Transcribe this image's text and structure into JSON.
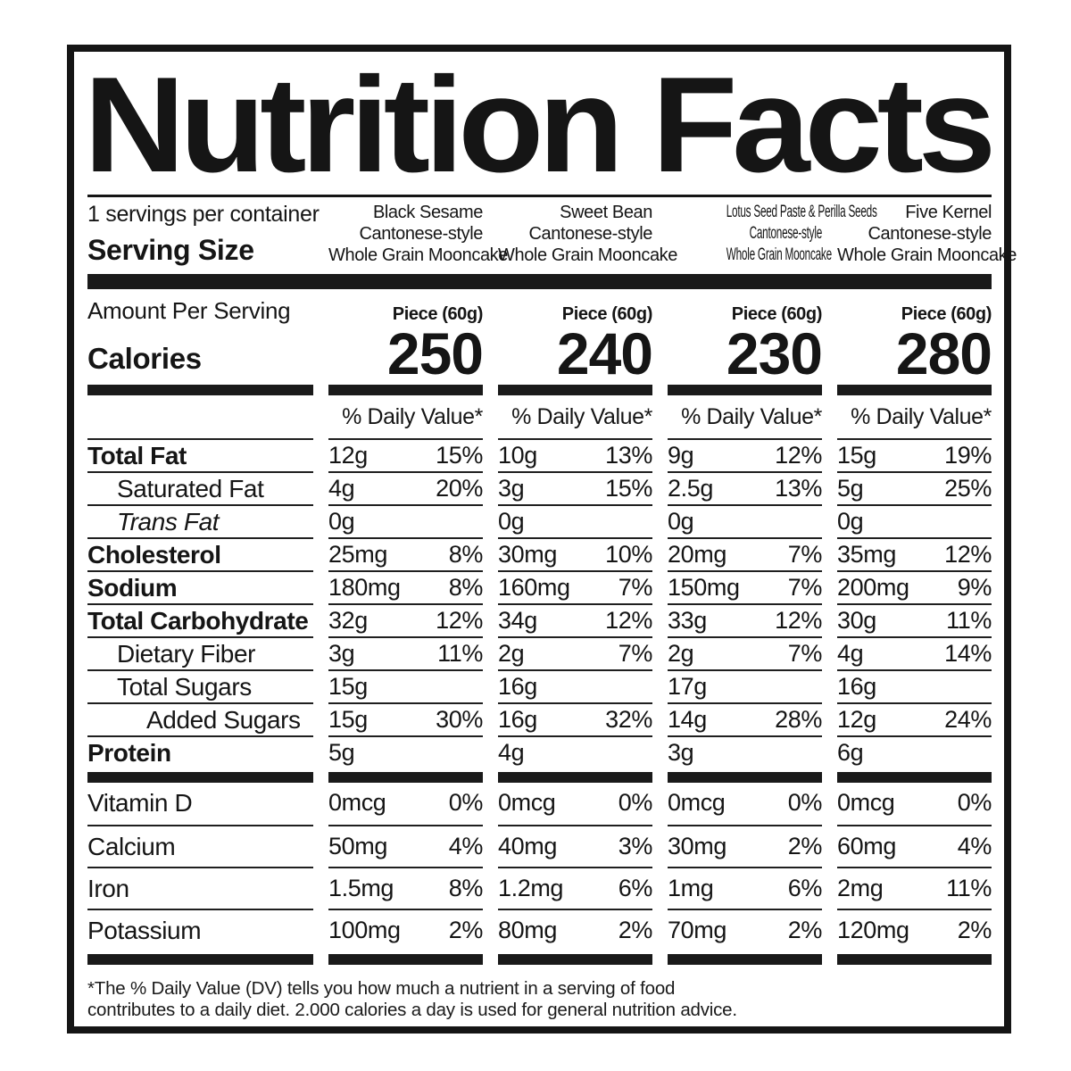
{
  "title": "Nutrition Facts",
  "servings_per_container": "1 servings per container",
  "serving_size_label": "Serving Size",
  "amount_per_serving_label": "Amount Per Serving",
  "calories_label": "Calories",
  "daily_value_header": "% Daily Value*",
  "products": [
    {
      "name_lines": [
        "Black Sesame",
        "Cantonese-style",
        "Whole Grain Mooncake"
      ],
      "condensed": false,
      "serving": "Piece (60g)",
      "calories": "250"
    },
    {
      "name_lines": [
        "Sweet Bean",
        "Cantonese-style",
        "Whole Grain Mooncake"
      ],
      "condensed": false,
      "serving": "Piece (60g)",
      "calories": "240"
    },
    {
      "name_lines": [
        "Lotus Seed Paste & Perilla Seeds",
        "Cantonese-style",
        "Whole Grain Mooncake"
      ],
      "condensed": true,
      "serving": "Piece (60g)",
      "calories": "230"
    },
    {
      "name_lines": [
        "Five Kernel",
        "Cantonese-style",
        "Whole Grain Mooncake"
      ],
      "condensed": false,
      "serving": "Piece (60g)",
      "calories": "280"
    }
  ],
  "nutrients": [
    {
      "label": "Total Fat",
      "style": "bold",
      "indent": 0,
      "values": [
        {
          "amt": "12g",
          "dv": "15%"
        },
        {
          "amt": "10g",
          "dv": "13%"
        },
        {
          "amt": "9g",
          "dv": "12%"
        },
        {
          "amt": "15g",
          "dv": "19%"
        }
      ]
    },
    {
      "label": "Saturated Fat",
      "style": "regular",
      "indent": 1,
      "values": [
        {
          "amt": "4g",
          "dv": "20%"
        },
        {
          "amt": "3g",
          "dv": "15%"
        },
        {
          "amt": "2.5g",
          "dv": "13%"
        },
        {
          "amt": "5g",
          "dv": "25%"
        }
      ]
    },
    {
      "label": "Trans Fat",
      "style": "italic",
      "indent": 1,
      "values": [
        {
          "amt": "0g",
          "dv": ""
        },
        {
          "amt": "0g",
          "dv": ""
        },
        {
          "amt": "0g",
          "dv": ""
        },
        {
          "amt": "0g",
          "dv": ""
        }
      ]
    },
    {
      "label": "Cholesterol",
      "style": "bold",
      "indent": 0,
      "values": [
        {
          "amt": "25mg",
          "dv": "8%"
        },
        {
          "amt": "30mg",
          "dv": "10%"
        },
        {
          "amt": "20mg",
          "dv": "7%"
        },
        {
          "amt": "35mg",
          "dv": "12%"
        }
      ]
    },
    {
      "label": "Sodium",
      "style": "bold",
      "indent": 0,
      "values": [
        {
          "amt": "180mg",
          "dv": "8%"
        },
        {
          "amt": "160mg",
          "dv": "7%"
        },
        {
          "amt": "150mg",
          "dv": "7%"
        },
        {
          "amt": "200mg",
          "dv": "9%"
        }
      ]
    },
    {
      "label": "Total Carbohydrate",
      "style": "bold",
      "indent": 0,
      "values": [
        {
          "amt": "32g",
          "dv": "12%"
        },
        {
          "amt": "34g",
          "dv": "12%"
        },
        {
          "amt": "33g",
          "dv": "12%"
        },
        {
          "amt": "30g",
          "dv": "11%"
        }
      ]
    },
    {
      "label": "Dietary Fiber",
      "style": "regular",
      "indent": 1,
      "values": [
        {
          "amt": "3g",
          "dv": "11%"
        },
        {
          "amt": "2g",
          "dv": "7%"
        },
        {
          "amt": "2g",
          "dv": "7%"
        },
        {
          "amt": "4g",
          "dv": "14%"
        }
      ]
    },
    {
      "label": "Total Sugars",
      "style": "regular",
      "indent": 1,
      "values": [
        {
          "amt": "15g",
          "dv": ""
        },
        {
          "amt": "16g",
          "dv": ""
        },
        {
          "amt": "17g",
          "dv": ""
        },
        {
          "amt": "16g",
          "dv": ""
        }
      ]
    },
    {
      "label": "Added Sugars",
      "style": "regular",
      "indent": 2,
      "values": [
        {
          "amt": "15g",
          "dv": "30%"
        },
        {
          "amt": "16g",
          "dv": "32%"
        },
        {
          "amt": "14g",
          "dv": "28%"
        },
        {
          "amt": "12g",
          "dv": "24%"
        }
      ]
    },
    {
      "label": "Protein",
      "style": "bold",
      "indent": 0,
      "values": [
        {
          "amt": "5g",
          "dv": ""
        },
        {
          "amt": "4g",
          "dv": ""
        },
        {
          "amt": "3g",
          "dv": ""
        },
        {
          "amt": "6g",
          "dv": ""
        }
      ]
    }
  ],
  "vitamins": [
    {
      "label": "Vitamin D",
      "values": [
        {
          "amt": "0mcg",
          "dv": "0%"
        },
        {
          "amt": "0mcg",
          "dv": "0%"
        },
        {
          "amt": "0mcg",
          "dv": "0%"
        },
        {
          "amt": "0mcg",
          "dv": "0%"
        }
      ]
    },
    {
      "label": "Calcium",
      "values": [
        {
          "amt": "50mg",
          "dv": "4%"
        },
        {
          "amt": "40mg",
          "dv": "3%"
        },
        {
          "amt": "30mg",
          "dv": "2%"
        },
        {
          "amt": "60mg",
          "dv": "4%"
        }
      ]
    },
    {
      "label": "Iron",
      "values": [
        {
          "amt": "1.5mg",
          "dv": "8%"
        },
        {
          "amt": "1.2mg",
          "dv": "6%"
        },
        {
          "amt": "1mg",
          "dv": "6%"
        },
        {
          "amt": "2mg",
          "dv": "11%"
        }
      ]
    },
    {
      "label": "Potassium",
      "values": [
        {
          "amt": "100mg",
          "dv": "2%"
        },
        {
          "amt": "80mg",
          "dv": "2%"
        },
        {
          "amt": "70mg",
          "dv": "2%"
        },
        {
          "amt": "120mg",
          "dv": "2%"
        }
      ]
    }
  ],
  "footnote_lines": [
    "*The % Daily Value (DV) tells you how much a nutrient in a serving of food",
    "contributes to a daily diet. 2.000 calories a day is used for general nutrition advice."
  ]
}
